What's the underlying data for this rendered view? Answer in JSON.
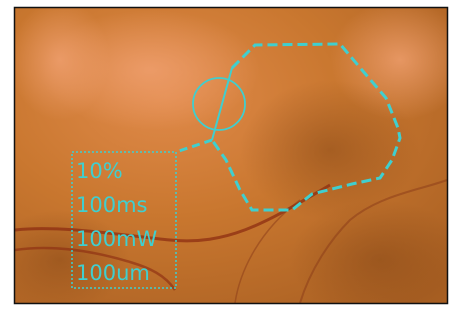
{
  "overlay": {
    "lines": [
      "10%",
      "100ms",
      "100mW",
      "100um"
    ]
  }
}
